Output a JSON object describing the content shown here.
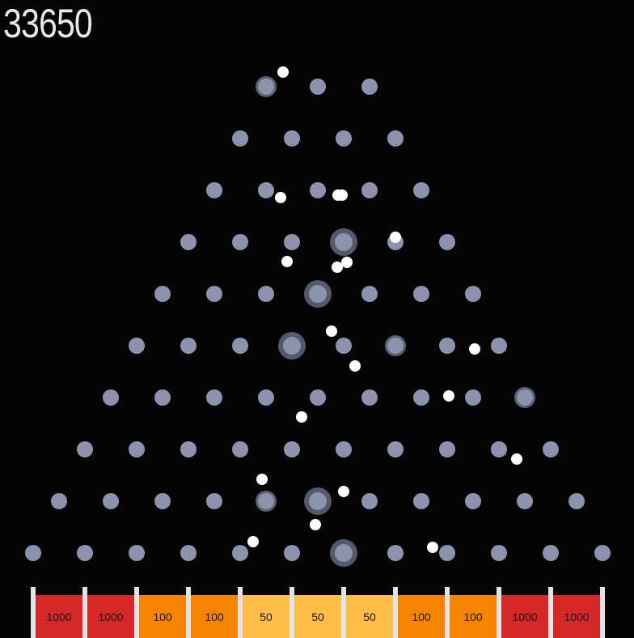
{
  "score": "33650",
  "colors": {
    "background": "#050505",
    "peg": "#8b93ad",
    "ball": "#ffffff",
    "bucket_red": "#d62828",
    "bucket_orange": "#f58400",
    "bucket_yellow": "#fdbd47",
    "divider": "#e4e4e4"
  },
  "buckets": [
    {
      "label": "1000",
      "color": "#d62828"
    },
    {
      "label": "1000",
      "color": "#d62828"
    },
    {
      "label": "100",
      "color": "#f58400"
    },
    {
      "label": "100",
      "color": "#f58400"
    },
    {
      "label": "50",
      "color": "#fdbd47"
    },
    {
      "label": "50",
      "color": "#fdbd47"
    },
    {
      "label": "50",
      "color": "#fdbd47"
    },
    {
      "label": "100",
      "color": "#f58400"
    },
    {
      "label": "100",
      "color": "#f58400"
    },
    {
      "label": "1000",
      "color": "#d62828"
    },
    {
      "label": "1000",
      "color": "#d62828"
    }
  ]
}
